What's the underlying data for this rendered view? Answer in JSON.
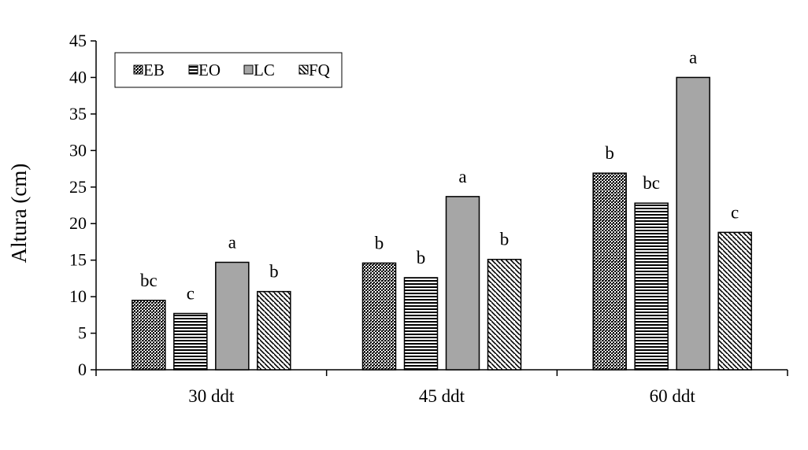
{
  "chart_data": {
    "type": "bar",
    "title": "",
    "xlabel": "",
    "ylabel": "Altura (cm)",
    "ylim": [
      0,
      45
    ],
    "yticks": [
      0,
      5,
      10,
      15,
      20,
      25,
      30,
      35,
      40,
      45
    ],
    "grid": false,
    "legend_position": "top-left",
    "categories": [
      "30 ddt",
      "45 ddt",
      "60 ddt"
    ],
    "series": [
      {
        "name": "EB",
        "pattern": "dots",
        "values": [
          9.5,
          14.6,
          26.9
        ],
        "labels": [
          "bc",
          "b",
          "b"
        ]
      },
      {
        "name": "EO",
        "pattern": "horizontal-lines",
        "values": [
          7.7,
          12.6,
          22.8
        ],
        "labels": [
          "c",
          "b",
          "bc"
        ]
      },
      {
        "name": "LC",
        "pattern": "solid-gray",
        "color": "#a6a6a6",
        "values": [
          14.7,
          23.7,
          40.0
        ],
        "labels": [
          "a",
          "a",
          "a"
        ]
      },
      {
        "name": "FQ",
        "pattern": "diagonal-lines",
        "values": [
          10.7,
          15.1,
          18.8
        ],
        "labels": [
          "b",
          "b",
          "c"
        ]
      }
    ]
  }
}
